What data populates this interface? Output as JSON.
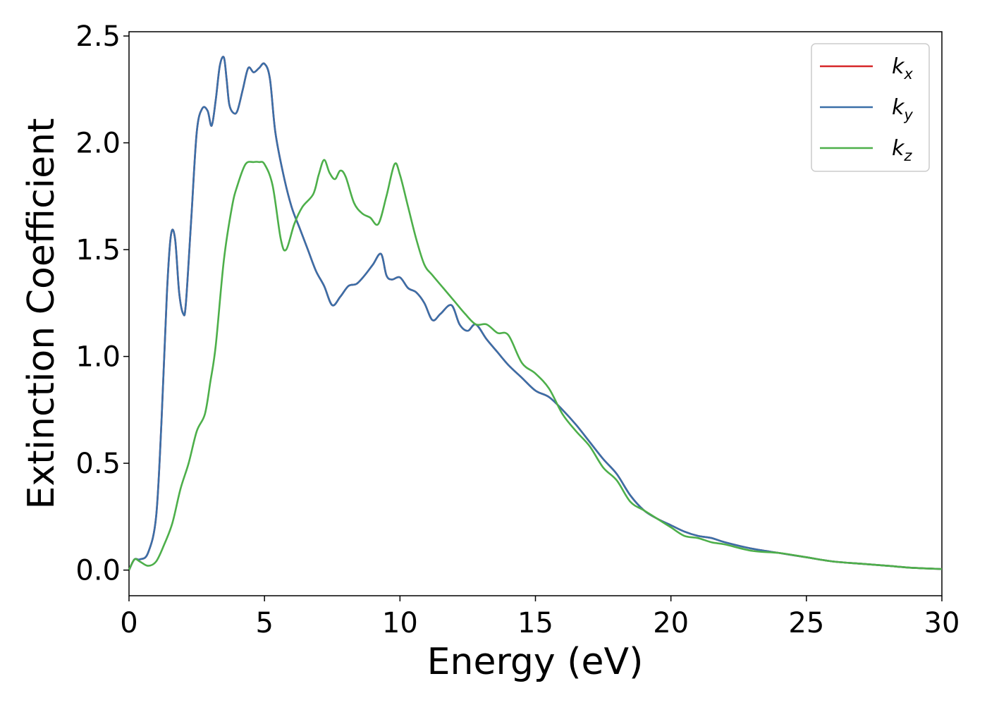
{
  "chart_data": {
    "type": "line",
    "title": "",
    "xlabel": "Energy (eV)",
    "ylabel": "Extinction Coefficient",
    "xlim": [
      0,
      30
    ],
    "ylim": [
      -0.12,
      2.52
    ],
    "xticks": [
      0,
      5,
      10,
      15,
      20,
      25,
      30
    ],
    "xtick_labels": [
      "0",
      "5",
      "10",
      "15",
      "20",
      "25",
      "30"
    ],
    "yticks": [
      0.0,
      0.5,
      1.0,
      1.5,
      2.0,
      2.5
    ],
    "ytick_labels": [
      "0.0",
      "0.5",
      "1.0",
      "1.5",
      "2.0",
      "2.5"
    ],
    "grid": false,
    "legend_position": "top-right",
    "series": [
      {
        "name": "k",
        "subscript": "x",
        "color": "#d62728",
        "x": [
          0,
          0.2,
          0.4,
          0.7,
          1.0,
          1.2,
          1.4,
          1.55,
          1.7,
          1.85,
          2.0,
          2.1,
          2.3,
          2.5,
          2.7,
          2.9,
          3.05,
          3.2,
          3.35,
          3.5,
          3.6,
          3.7,
          3.85,
          4.0,
          4.2,
          4.4,
          4.6,
          4.8,
          5.0,
          5.2,
          5.4,
          5.7,
          6.0,
          6.3,
          6.6,
          6.9,
          7.2,
          7.5,
          7.8,
          8.1,
          8.4,
          8.7,
          9.0,
          9.3,
          9.5,
          9.7,
          10.0,
          10.3,
          10.6,
          10.9,
          11.2,
          11.5,
          11.9,
          12.2,
          12.5,
          12.8,
          13.2,
          13.6,
          14.0,
          14.5,
          15.0,
          15.5,
          16.0,
          16.5,
          17.0,
          17.5,
          18.0,
          18.5,
          19.0,
          19.5,
          20.0,
          20.5,
          21.0,
          21.5,
          22.0,
          23.0,
          24.0,
          25.0,
          26.0,
          27.0,
          28.0,
          29.0,
          30.0
        ],
        "values": [
          0.0,
          0.05,
          0.05,
          0.08,
          0.25,
          0.7,
          1.3,
          1.57,
          1.55,
          1.3,
          1.2,
          1.25,
          1.65,
          2.05,
          2.16,
          2.15,
          2.08,
          2.2,
          2.36,
          2.4,
          2.3,
          2.18,
          2.14,
          2.15,
          2.25,
          2.35,
          2.33,
          2.35,
          2.37,
          2.3,
          2.05,
          1.85,
          1.7,
          1.6,
          1.5,
          1.4,
          1.33,
          1.24,
          1.28,
          1.33,
          1.34,
          1.38,
          1.43,
          1.48,
          1.38,
          1.36,
          1.37,
          1.32,
          1.3,
          1.25,
          1.17,
          1.2,
          1.24,
          1.15,
          1.12,
          1.15,
          1.08,
          1.02,
          0.96,
          0.9,
          0.84,
          0.81,
          0.75,
          0.68,
          0.6,
          0.52,
          0.45,
          0.35,
          0.28,
          0.24,
          0.21,
          0.18,
          0.16,
          0.15,
          0.13,
          0.1,
          0.08,
          0.06,
          0.04,
          0.03,
          0.02,
          0.01,
          0.005
        ]
      },
      {
        "name": "k",
        "subscript": "y",
        "color": "#3a6fa8",
        "x": [
          0,
          0.2,
          0.4,
          0.7,
          1.0,
          1.2,
          1.4,
          1.55,
          1.7,
          1.85,
          2.0,
          2.1,
          2.3,
          2.5,
          2.7,
          2.9,
          3.05,
          3.2,
          3.35,
          3.5,
          3.6,
          3.7,
          3.85,
          4.0,
          4.2,
          4.4,
          4.6,
          4.8,
          5.0,
          5.2,
          5.4,
          5.7,
          6.0,
          6.3,
          6.6,
          6.9,
          7.2,
          7.5,
          7.8,
          8.1,
          8.4,
          8.7,
          9.0,
          9.3,
          9.5,
          9.7,
          10.0,
          10.3,
          10.6,
          10.9,
          11.2,
          11.5,
          11.9,
          12.2,
          12.5,
          12.8,
          13.2,
          13.6,
          14.0,
          14.5,
          15.0,
          15.5,
          16.0,
          16.5,
          17.0,
          17.5,
          18.0,
          18.5,
          19.0,
          19.5,
          20.0,
          20.5,
          21.0,
          21.5,
          22.0,
          23.0,
          24.0,
          25.0,
          26.0,
          27.0,
          28.0,
          29.0,
          30.0
        ],
        "values": [
          0.0,
          0.05,
          0.05,
          0.08,
          0.25,
          0.7,
          1.3,
          1.57,
          1.55,
          1.3,
          1.2,
          1.25,
          1.65,
          2.05,
          2.16,
          2.15,
          2.08,
          2.2,
          2.36,
          2.4,
          2.3,
          2.18,
          2.14,
          2.15,
          2.25,
          2.35,
          2.33,
          2.35,
          2.37,
          2.3,
          2.05,
          1.85,
          1.7,
          1.6,
          1.5,
          1.4,
          1.33,
          1.24,
          1.28,
          1.33,
          1.34,
          1.38,
          1.43,
          1.48,
          1.38,
          1.36,
          1.37,
          1.32,
          1.3,
          1.25,
          1.17,
          1.2,
          1.24,
          1.15,
          1.12,
          1.15,
          1.08,
          1.02,
          0.96,
          0.9,
          0.84,
          0.81,
          0.75,
          0.68,
          0.6,
          0.52,
          0.45,
          0.35,
          0.28,
          0.24,
          0.21,
          0.18,
          0.16,
          0.15,
          0.13,
          0.1,
          0.08,
          0.06,
          0.04,
          0.03,
          0.02,
          0.01,
          0.005
        ]
      },
      {
        "name": "k",
        "subscript": "z",
        "color": "#4daf4a",
        "x": [
          0,
          0.2,
          0.4,
          0.7,
          1.0,
          1.3,
          1.6,
          1.9,
          2.2,
          2.5,
          2.8,
          3.0,
          3.2,
          3.5,
          3.8,
          4.0,
          4.3,
          4.6,
          4.8,
          5.0,
          5.3,
          5.6,
          5.8,
          6.1,
          6.4,
          6.8,
          7.0,
          7.2,
          7.4,
          7.6,
          7.8,
          8.0,
          8.3,
          8.6,
          8.9,
          9.2,
          9.5,
          9.8,
          10.0,
          10.3,
          10.6,
          10.9,
          11.2,
          11.6,
          12.0,
          12.4,
          12.8,
          13.2,
          13.6,
          14.0,
          14.5,
          15.0,
          15.5,
          16.0,
          16.5,
          17.0,
          17.5,
          18.0,
          18.5,
          19.0,
          19.5,
          20.0,
          20.5,
          21.0,
          21.5,
          22.0,
          23.0,
          24.0,
          25.0,
          26.0,
          27.0,
          28.0,
          29.0,
          30.0
        ],
        "values": [
          0.0,
          0.05,
          0.04,
          0.02,
          0.04,
          0.12,
          0.22,
          0.38,
          0.5,
          0.65,
          0.73,
          0.88,
          1.05,
          1.45,
          1.7,
          1.8,
          1.9,
          1.91,
          1.91,
          1.9,
          1.8,
          1.55,
          1.5,
          1.62,
          1.7,
          1.76,
          1.85,
          1.92,
          1.86,
          1.83,
          1.87,
          1.84,
          1.72,
          1.67,
          1.65,
          1.62,
          1.75,
          1.9,
          1.85,
          1.7,
          1.55,
          1.43,
          1.38,
          1.32,
          1.26,
          1.2,
          1.15,
          1.15,
          1.11,
          1.1,
          0.97,
          0.92,
          0.85,
          0.73,
          0.65,
          0.58,
          0.48,
          0.42,
          0.32,
          0.28,
          0.24,
          0.2,
          0.16,
          0.15,
          0.13,
          0.12,
          0.09,
          0.08,
          0.06,
          0.04,
          0.03,
          0.02,
          0.01,
          0.005
        ]
      }
    ]
  }
}
